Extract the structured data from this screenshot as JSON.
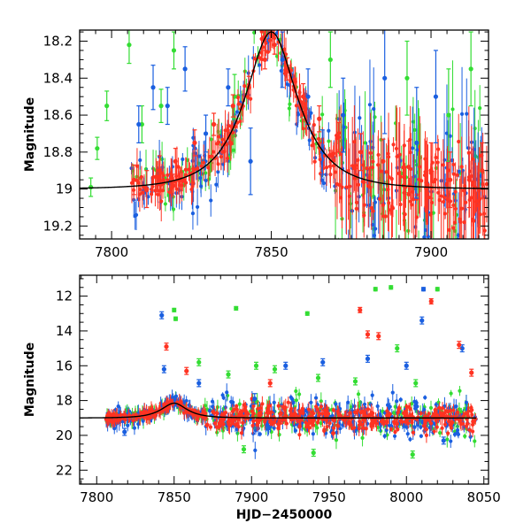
{
  "chart_data": [
    {
      "type": "scatter",
      "panel": "top",
      "title": "",
      "xlabel": "",
      "ylabel": "Magnitude",
      "xlim": [
        7790,
        7918
      ],
      "ylim": [
        19.27,
        18.14
      ],
      "y_inverted": true,
      "xticks": [
        7800,
        7850,
        7900
      ],
      "yticks": [
        18.2,
        18.4,
        18.6,
        18.8,
        19,
        19.2
      ],
      "colors": {
        "blue": "#1a5fe0",
        "green": "#33dd33",
        "red": "#ff3322",
        "model": "#000000"
      },
      "model_curve": {
        "name": "",
        "peak_x": 7850,
        "peak_mag": 18.15,
        "base_mag": 19.0,
        "tE": 13.5,
        "x_range": [
          7790,
          7918
        ]
      },
      "series": [
        {
          "name": "",
          "color": "green",
          "points": [
            {
              "x": 7793.5,
              "y": 18.99,
              "err": 0.05
            },
            {
              "x": 7795.5,
              "y": 18.78,
              "err": 0.06
            },
            {
              "x": 7798.5,
              "y": 18.55,
              "err": 0.08
            },
            {
              "x": 7805.5,
              "y": 18.22,
              "err": 0.1
            },
            {
              "x": 7809.5,
              "y": 18.65,
              "err": 0.1
            },
            {
              "x": 7815.5,
              "y": 18.55,
              "err": 0.09
            },
            {
              "x": 7819.5,
              "y": 18.25,
              "err": 0.1
            },
            {
              "x": 7838.5,
              "y": 18.5,
              "err": 0.12
            },
            {
              "x": 7868.5,
              "y": 18.3,
              "err": 0.15
            },
            {
              "x": 7892.5,
              "y": 18.4,
              "err": 0.2
            },
            {
              "x": 7905.5,
              "y": 18.6,
              "err": 0.25
            },
            {
              "x": 7912.5,
              "y": 18.35,
              "err": 0.2
            }
          ]
        },
        {
          "name": "",
          "color": "blue",
          "points": [
            {
              "x": 7808.5,
              "y": 18.65,
              "err": 0.1
            },
            {
              "x": 7813.0,
              "y": 18.45,
              "err": 0.12
            },
            {
              "x": 7817.5,
              "y": 18.55,
              "err": 0.1
            },
            {
              "x": 7823.0,
              "y": 18.35,
              "err": 0.12
            },
            {
              "x": 7829.5,
              "y": 18.7,
              "err": 0.1
            },
            {
              "x": 7836.5,
              "y": 18.45,
              "err": 0.1
            },
            {
              "x": 7843.5,
              "y": 18.85,
              "err": 0.18
            },
            {
              "x": 7853.5,
              "y": 18.3,
              "err": 0.15
            },
            {
              "x": 7861.5,
              "y": 18.5,
              "err": 0.15
            },
            {
              "x": 7866.0,
              "y": 18.8,
              "err": 0.12
            },
            {
              "x": 7872.5,
              "y": 18.6,
              "err": 0.2
            },
            {
              "x": 7885.5,
              "y": 18.4,
              "err": 0.3
            },
            {
              "x": 7895.5,
              "y": 18.75,
              "err": 0.3
            },
            {
              "x": 7901.5,
              "y": 18.5,
              "err": 0.25
            }
          ]
        },
        {
          "name": "",
          "color": "red",
          "points": [
            {
              "x": 7807.0,
              "y": 18.95,
              "err": 0.08
            },
            {
              "x": 7811.0,
              "y": 19.0,
              "err": 0.1
            },
            {
              "x": 7815.0,
              "y": 18.9,
              "err": 0.08
            },
            {
              "x": 7820.0,
              "y": 18.85,
              "err": 0.07
            },
            {
              "x": 7826.0,
              "y": 18.75,
              "err": 0.07
            },
            {
              "x": 7832.0,
              "y": 18.65,
              "err": 0.06
            },
            {
              "x": 7838.0,
              "y": 18.55,
              "err": 0.06
            },
            {
              "x": 7843.0,
              "y": 18.45,
              "err": 0.06
            },
            {
              "x": 7848.0,
              "y": 18.3,
              "err": 0.05
            },
            {
              "x": 7851.0,
              "y": 18.22,
              "err": 0.05
            },
            {
              "x": 7855.0,
              "y": 18.35,
              "err": 0.06
            },
            {
              "x": 7860.0,
              "y": 18.5,
              "err": 0.07
            },
            {
              "x": 7865.0,
              "y": 18.62,
              "err": 0.07
            },
            {
              "x": 7871.0,
              "y": 18.72,
              "err": 0.08
            },
            {
              "x": 7878.0,
              "y": 18.8,
              "err": 0.1
            },
            {
              "x": 7885.0,
              "y": 18.85,
              "err": 0.12
            },
            {
              "x": 7893.0,
              "y": 18.88,
              "err": 0.14
            },
            {
              "x": 7900.0,
              "y": 18.9,
              "err": 0.15
            },
            {
              "x": 7906.0,
              "y": 18.95,
              "err": 0.15
            },
            {
              "x": 7912.0,
              "y": 18.95,
              "err": 0.15
            },
            {
              "x": 7916.0,
              "y": 18.9,
              "err": 0.15
            }
          ]
        }
      ]
    },
    {
      "type": "scatter",
      "panel": "bottom",
      "title": "",
      "xlabel": "HJD−2450000",
      "ylabel": "Magnitude",
      "xlim": [
        7789,
        8053
      ],
      "ylim": [
        22.8,
        10.8
      ],
      "y_inverted": true,
      "xticks": [
        7800,
        7850,
        7900,
        7950,
        8000,
        8050
      ],
      "yticks": [
        12,
        14,
        16,
        18,
        20,
        22
      ],
      "colors": {
        "blue": "#1a5fe0",
        "green": "#33dd33",
        "red": "#ff3322",
        "model": "#000000"
      },
      "model_curve": {
        "name": "",
        "peak_x": 7850,
        "peak_mag": 18.15,
        "base_mag": 19.0,
        "tE": 13.5,
        "x_range": [
          7789,
          8045
        ]
      },
      "series": [
        {
          "name": "",
          "color": "green",
          "points": [
            {
              "x": 7850.0,
              "y": 12.8,
              "err": 0.1
            },
            {
              "x": 7851.0,
              "y": 13.3,
              "err": 0.1
            },
            {
              "x": 7866.0,
              "y": 15.8,
              "err": 0.2
            },
            {
              "x": 7885.0,
              "y": 16.5,
              "err": 0.2
            },
            {
              "x": 7890.0,
              "y": 12.7,
              "err": 0.1
            },
            {
              "x": 7903.0,
              "y": 16.0,
              "err": 0.2
            },
            {
              "x": 7915.0,
              "y": 16.2,
              "err": 0.2
            },
            {
              "x": 7936.0,
              "y": 13.0,
              "err": 0.1
            },
            {
              "x": 7943.0,
              "y": 16.7,
              "err": 0.2
            },
            {
              "x": 7967.0,
              "y": 16.9,
              "err": 0.2
            },
            {
              "x": 7980.0,
              "y": 11.6,
              "err": 0.1
            },
            {
              "x": 7990.0,
              "y": 11.5,
              "err": 0.1
            },
            {
              "x": 7994.0,
              "y": 15.0,
              "err": 0.2
            },
            {
              "x": 8006.0,
              "y": 17.0,
              "err": 0.2
            },
            {
              "x": 8020.0,
              "y": 11.6,
              "err": 0.1
            },
            {
              "x": 7895.0,
              "y": 20.8,
              "err": 0.2
            },
            {
              "x": 7940.0,
              "y": 21.0,
              "err": 0.2
            },
            {
              "x": 8004.0,
              "y": 21.1,
              "err": 0.2
            }
          ]
        },
        {
          "name": "",
          "color": "blue",
          "points": [
            {
              "x": 7842.0,
              "y": 13.1,
              "err": 0.2
            },
            {
              "x": 7843.5,
              "y": 16.2,
              "err": 0.2
            },
            {
              "x": 7866.0,
              "y": 17.0,
              "err": 0.2
            },
            {
              "x": 7902.0,
              "y": 17.9,
              "err": 0.3
            },
            {
              "x": 7922.0,
              "y": 16.0,
              "err": 0.2
            },
            {
              "x": 7946.0,
              "y": 15.8,
              "err": 0.2
            },
            {
              "x": 7975.0,
              "y": 15.6,
              "err": 0.2
            },
            {
              "x": 8000.0,
              "y": 16.0,
              "err": 0.2
            },
            {
              "x": 8010.0,
              "y": 13.4,
              "err": 0.2
            },
            {
              "x": 8011.0,
              "y": 11.6,
              "err": 0.1
            },
            {
              "x": 8036.0,
              "y": 15.0,
              "err": 0.2
            },
            {
              "x": 7818.0,
              "y": 19.8,
              "err": 0.2
            },
            {
              "x": 8024.0,
              "y": 20.3,
              "err": 0.2
            }
          ]
        },
        {
          "name": "",
          "color": "red",
          "points": [
            {
              "x": 7845.0,
              "y": 14.9,
              "err": 0.2
            },
            {
              "x": 7858.0,
              "y": 16.3,
              "err": 0.2
            },
            {
              "x": 7912.0,
              "y": 17.0,
              "err": 0.2
            },
            {
              "x": 7970.0,
              "y": 12.8,
              "err": 0.15
            },
            {
              "x": 7975.0,
              "y": 14.2,
              "err": 0.2
            },
            {
              "x": 7982.0,
              "y": 14.3,
              "err": 0.2
            },
            {
              "x": 8016.0,
              "y": 12.3,
              "err": 0.15
            },
            {
              "x": 8034.0,
              "y": 14.8,
              "err": 0.2
            },
            {
              "x": 8042.0,
              "y": 16.4,
              "err": 0.2
            }
          ]
        }
      ]
    }
  ]
}
